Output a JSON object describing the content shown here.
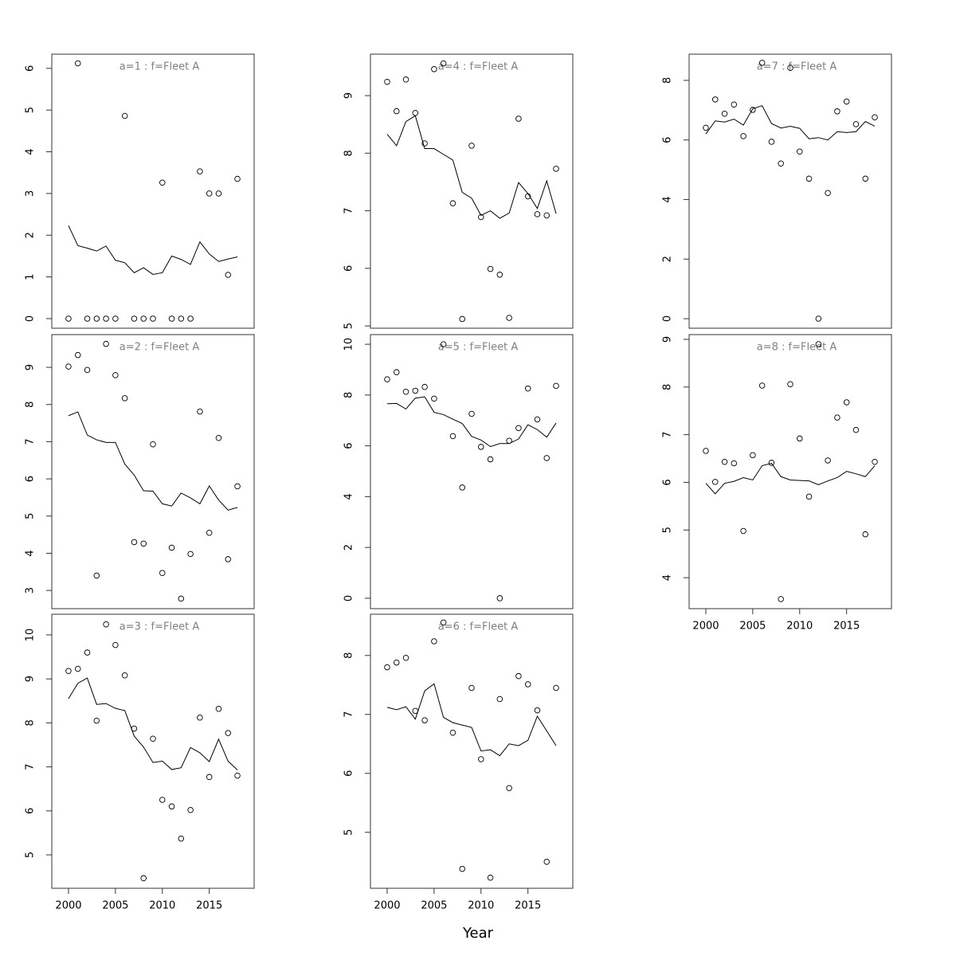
{
  "xlabel": "Year",
  "chart_data": [
    {
      "type": "line",
      "title": "a=1  :  f=Fleet A",
      "title_color": "#808080",
      "x": [
        2000,
        2001,
        2002,
        2003,
        2004,
        2005,
        2006,
        2007,
        2008,
        2009,
        2010,
        2011,
        2012,
        2013,
        2014,
        2015,
        2016,
        2017,
        2018
      ],
      "xlim": [
        1998.22,
        2019.78
      ],
      "ylim": [
        -0.23,
        6.34
      ],
      "yticks": [
        0,
        1,
        2,
        3,
        4,
        5,
        6
      ],
      "series": [
        {
          "style": "points",
          "color": "#000000",
          "values": [
            0,
            6.12,
            0,
            0,
            0,
            0,
            4.86,
            0,
            0,
            0,
            3.26,
            0,
            0,
            0,
            3.53,
            3.0,
            3.0,
            1.05,
            3.35
          ]
        },
        {
          "style": "line",
          "color": "#000000",
          "values": [
            2.23,
            1.75,
            1.69,
            1.62,
            1.74,
            1.4,
            1.34,
            1.1,
            1.22,
            1.06,
            1.1,
            1.5,
            1.42,
            1.3,
            1.84,
            1.55,
            1.37,
            1.43,
            1.48
          ]
        }
      ]
    },
    {
      "type": "line",
      "title": "a=2  :  f=Fleet A",
      "title_color": "#808080",
      "x": [
        2000,
        2001,
        2002,
        2003,
        2004,
        2005,
        2006,
        2007,
        2008,
        2009,
        2010,
        2011,
        2012,
        2013,
        2014,
        2015,
        2016,
        2017,
        2018
      ],
      "xlim": [
        1998.22,
        2019.78
      ],
      "ylim": [
        2.51,
        9.88
      ],
      "yticks": [
        3,
        4,
        5,
        6,
        7,
        8,
        9
      ],
      "series": [
        {
          "style": "points",
          "color": "#000000",
          "values": [
            9.02,
            9.33,
            8.93,
            3.4,
            9.63,
            8.79,
            8.17,
            4.3,
            4.26,
            6.93,
            3.47,
            4.15,
            2.78,
            3.98,
            7.81,
            4.55,
            7.1,
            3.84,
            5.8
          ]
        },
        {
          "style": "line",
          "color": "#000000",
          "values": [
            7.7,
            7.8,
            7.18,
            7.05,
            6.98,
            6.98,
            6.4,
            6.1,
            5.68,
            5.67,
            5.33,
            5.27,
            5.62,
            5.49,
            5.33,
            5.81,
            5.43,
            5.16,
            5.23
          ]
        }
      ]
    },
    {
      "type": "line",
      "title": "a=3  :  f=Fleet A",
      "title_color": "#808080",
      "x": [
        2000,
        2001,
        2002,
        2003,
        2004,
        2005,
        2006,
        2007,
        2008,
        2009,
        2010,
        2011,
        2012,
        2013,
        2014,
        2015,
        2016,
        2017,
        2018
      ],
      "xlim": [
        1998.22,
        2019.78
      ],
      "xticks": [
        2000,
        2005,
        2010,
        2015
      ],
      "ylim": [
        4.24,
        10.47
      ],
      "yticks": [
        5,
        6,
        7,
        8,
        9,
        10
      ],
      "series": [
        {
          "style": "points",
          "color": "#000000",
          "values": [
            9.18,
            9.23,
            9.6,
            8.05,
            10.24,
            9.77,
            9.08,
            7.87,
            4.47,
            7.64,
            6.25,
            6.1,
            5.37,
            6.02,
            8.12,
            6.77,
            8.32,
            7.77,
            6.8
          ]
        },
        {
          "style": "line",
          "color": "#000000",
          "values": [
            8.55,
            8.9,
            9.02,
            8.42,
            8.44,
            8.33,
            8.28,
            7.7,
            7.45,
            7.1,
            7.13,
            6.94,
            6.98,
            7.44,
            7.32,
            7.12,
            7.63,
            7.13,
            6.93
          ]
        }
      ]
    },
    {
      "type": "line",
      "title": "a=4  :  f=Fleet A",
      "title_color": "#808080",
      "x": [
        2000,
        2001,
        2002,
        2003,
        2004,
        2005,
        2006,
        2007,
        2008,
        2009,
        2010,
        2011,
        2012,
        2013,
        2014,
        2015,
        2016,
        2017,
        2018
      ],
      "xlim": [
        1998.22,
        2019.78
      ],
      "ylim": [
        4.96,
        9.72
      ],
      "yticks": [
        5,
        6,
        7,
        8,
        9
      ],
      "series": [
        {
          "style": "points",
          "color": "#000000",
          "values": [
            9.24,
            8.73,
            9.28,
            8.7,
            8.17,
            9.46,
            9.56,
            7.13,
            5.12,
            8.13,
            6.89,
            5.99,
            5.89,
            5.14,
            8.6,
            7.25,
            6.94,
            6.92,
            7.73
          ]
        },
        {
          "style": "line",
          "color": "#000000",
          "values": [
            8.33,
            8.13,
            8.55,
            8.65,
            8.08,
            8.08,
            7.98,
            7.88,
            7.32,
            7.22,
            6.92,
            7.0,
            6.87,
            6.96,
            7.49,
            7.3,
            7.04,
            7.52,
            6.95
          ]
        }
      ]
    },
    {
      "type": "line",
      "title": "a=5  :  f=Fleet A",
      "title_color": "#808080",
      "x": [
        2000,
        2001,
        2002,
        2003,
        2004,
        2005,
        2006,
        2007,
        2008,
        2009,
        2010,
        2011,
        2012,
        2013,
        2014,
        2015,
        2016,
        2017,
        2018
      ],
      "xlim": [
        1998.22,
        2019.78
      ],
      "ylim": [
        -0.41,
        10.38
      ],
      "yticks": [
        0,
        2,
        4,
        6,
        8,
        10
      ],
      "series": [
        {
          "style": "points",
          "color": "#000000",
          "values": [
            8.62,
            8.9,
            8.13,
            8.17,
            8.32,
            7.86,
            10.0,
            6.38,
            4.36,
            7.26,
            5.96,
            5.47,
            0,
            6.2,
            6.7,
            8.26,
            7.04,
            5.52,
            8.36
          ]
        },
        {
          "style": "line",
          "color": "#000000",
          "values": [
            7.66,
            7.67,
            7.45,
            7.88,
            7.93,
            7.32,
            7.23,
            7.05,
            6.88,
            6.37,
            6.23,
            5.97,
            6.09,
            6.09,
            6.27,
            6.83,
            6.64,
            6.34,
            6.9
          ]
        }
      ]
    },
    {
      "type": "line",
      "title": "a=6  :  f=Fleet A",
      "title_color": "#808080",
      "x": [
        2000,
        2001,
        2002,
        2003,
        2004,
        2005,
        2006,
        2007,
        2008,
        2009,
        2010,
        2011,
        2012,
        2013,
        2014,
        2015,
        2016,
        2017,
        2018
      ],
      "xlim": [
        1998.22,
        2019.78
      ],
      "xticks": [
        2000,
        2005,
        2010,
        2015
      ],
      "ylim": [
        4.05,
        8.7
      ],
      "yticks": [
        5,
        6,
        7,
        8
      ],
      "series": [
        {
          "style": "points",
          "color": "#000000",
          "values": [
            7.8,
            7.88,
            7.96,
            7.06,
            6.9,
            8.24,
            8.56,
            6.69,
            4.38,
            7.45,
            6.24,
            4.23,
            7.26,
            5.75,
            7.65,
            7.51,
            7.07,
            4.5,
            7.45
          ]
        },
        {
          "style": "line",
          "color": "#000000",
          "values": [
            7.12,
            7.08,
            7.13,
            6.92,
            7.4,
            7.52,
            6.95,
            6.86,
            6.82,
            6.78,
            6.38,
            6.4,
            6.3,
            6.5,
            6.47,
            6.56,
            6.97,
            6.72,
            6.47
          ]
        }
      ]
    },
    {
      "type": "line",
      "title": "a=7  :  f=Fleet A",
      "title_color": "#808080",
      "x": [
        2000,
        2001,
        2002,
        2003,
        2004,
        2005,
        2006,
        2007,
        2008,
        2009,
        2010,
        2011,
        2012,
        2013,
        2014,
        2015,
        2016,
        2017,
        2018
      ],
      "xlim": [
        1998.22,
        2019.78
      ],
      "ylim": [
        -0.32,
        8.88
      ],
      "yticks": [
        0,
        2,
        4,
        6,
        8
      ],
      "series": [
        {
          "style": "points",
          "color": "#000000",
          "values": [
            6.41,
            7.36,
            6.88,
            7.19,
            6.13,
            7.01,
            8.59,
            5.94,
            5.21,
            8.42,
            5.61,
            4.7,
            0,
            4.22,
            6.96,
            7.29,
            6.53,
            4.7,
            6.76
          ]
        },
        {
          "style": "line",
          "color": "#000000",
          "values": [
            6.2,
            6.64,
            6.6,
            6.7,
            6.5,
            7.05,
            7.15,
            6.55,
            6.4,
            6.46,
            6.39,
            6.04,
            6.08,
            6.0,
            6.28,
            6.25,
            6.28,
            6.62,
            6.46
          ]
        }
      ]
    },
    {
      "type": "line",
      "title": "a=8  :  f=Fleet A",
      "title_color": "#808080",
      "x": [
        2000,
        2001,
        2002,
        2003,
        2004,
        2005,
        2006,
        2007,
        2008,
        2009,
        2010,
        2011,
        2012,
        2013,
        2014,
        2015,
        2016,
        2017,
        2018
      ],
      "xlim": [
        1998.22,
        2019.78
      ],
      "xticks": [
        2000,
        2005,
        2010,
        2015
      ],
      "ylim": [
        3.35,
        9.1
      ],
      "yticks": [
        4,
        5,
        6,
        7,
        8,
        9
      ],
      "series": [
        {
          "style": "points",
          "color": "#000000",
          "values": [
            6.66,
            6.01,
            6.43,
            6.4,
            4.98,
            6.57,
            8.03,
            6.41,
            3.55,
            8.06,
            6.92,
            5.7,
            8.9,
            6.46,
            7.36,
            7.68,
            7.1,
            4.91,
            6.43
          ]
        },
        {
          "style": "line",
          "color": "#000000",
          "values": [
            5.98,
            5.76,
            5.98,
            6.02,
            6.1,
            6.05,
            6.35,
            6.4,
            6.12,
            6.05,
            6.04,
            6.03,
            5.95,
            6.03,
            6.1,
            6.23,
            6.18,
            6.12,
            6.35
          ]
        }
      ]
    }
  ]
}
